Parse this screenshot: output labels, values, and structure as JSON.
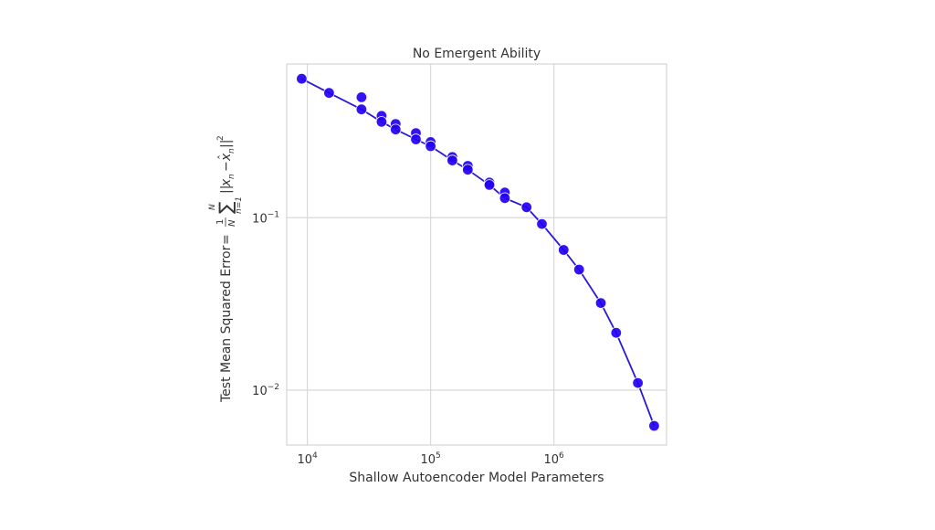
{
  "chart_data": {
    "type": "line",
    "title": "No Emergent Ability",
    "xlabel": "Shallow Autoencoder Model Parameters",
    "ylabel": "Test Mean Squared Error",
    "ylabel_equation": "= (1/N) ∑_{n=1}^{N} ||x_n − x̂_n||²",
    "x_scale": "log",
    "y_scale": "log",
    "xlim": [
      6800,
      8200000
    ],
    "ylim": [
      0.0048,
      0.78
    ],
    "grid": true,
    "x_ticks": [
      {
        "value": 10000,
        "base": "10",
        "exponent": "4"
      },
      {
        "value": 100000,
        "base": "10",
        "exponent": "5"
      },
      {
        "value": 1000000,
        "base": "10",
        "exponent": "6"
      }
    ],
    "y_ticks": [
      {
        "value": 0.1,
        "base": "10",
        "exponent": "−1"
      },
      {
        "value": 0.01,
        "base": "10",
        "exponent": "−2"
      }
    ],
    "colors": {
      "line": "#2a1ad6",
      "marker": "#2300f2",
      "marker_edge": "#ffffff",
      "grid": "#d9d9d9",
      "spine": "#cccccc"
    },
    "series": [
      {
        "x": [
          9000,
          15000,
          27500,
          27500,
          40000,
          40000,
          52000,
          52000,
          76000,
          76000,
          100000,
          100000,
          150000,
          150000,
          200000,
          200000,
          300000,
          300000,
          400000,
          400000,
          600000,
          800000,
          1200000,
          1600000,
          2400000,
          3200000,
          4800000,
          6500000
        ],
        "y": [
          0.64,
          0.53,
          0.5,
          0.425,
          0.39,
          0.36,
          0.35,
          0.325,
          0.31,
          0.285,
          0.275,
          0.26,
          0.225,
          0.215,
          0.2,
          0.19,
          0.16,
          0.155,
          0.14,
          0.13,
          0.115,
          0.092,
          0.065,
          0.05,
          0.032,
          0.0215,
          0.011,
          0.0062
        ]
      }
    ],
    "line_x": [
      9000,
      15000,
      27500,
      40000,
      52000,
      76000,
      100000,
      150000,
      200000,
      300000,
      400000,
      600000,
      800000,
      1200000,
      1600000,
      2400000,
      3200000,
      4800000,
      6500000
    ],
    "line_y": [
      0.64,
      0.53,
      0.425,
      0.36,
      0.325,
      0.285,
      0.26,
      0.215,
      0.19,
      0.155,
      0.13,
      0.115,
      0.092,
      0.065,
      0.05,
      0.032,
      0.0215,
      0.011,
      0.0062
    ]
  }
}
